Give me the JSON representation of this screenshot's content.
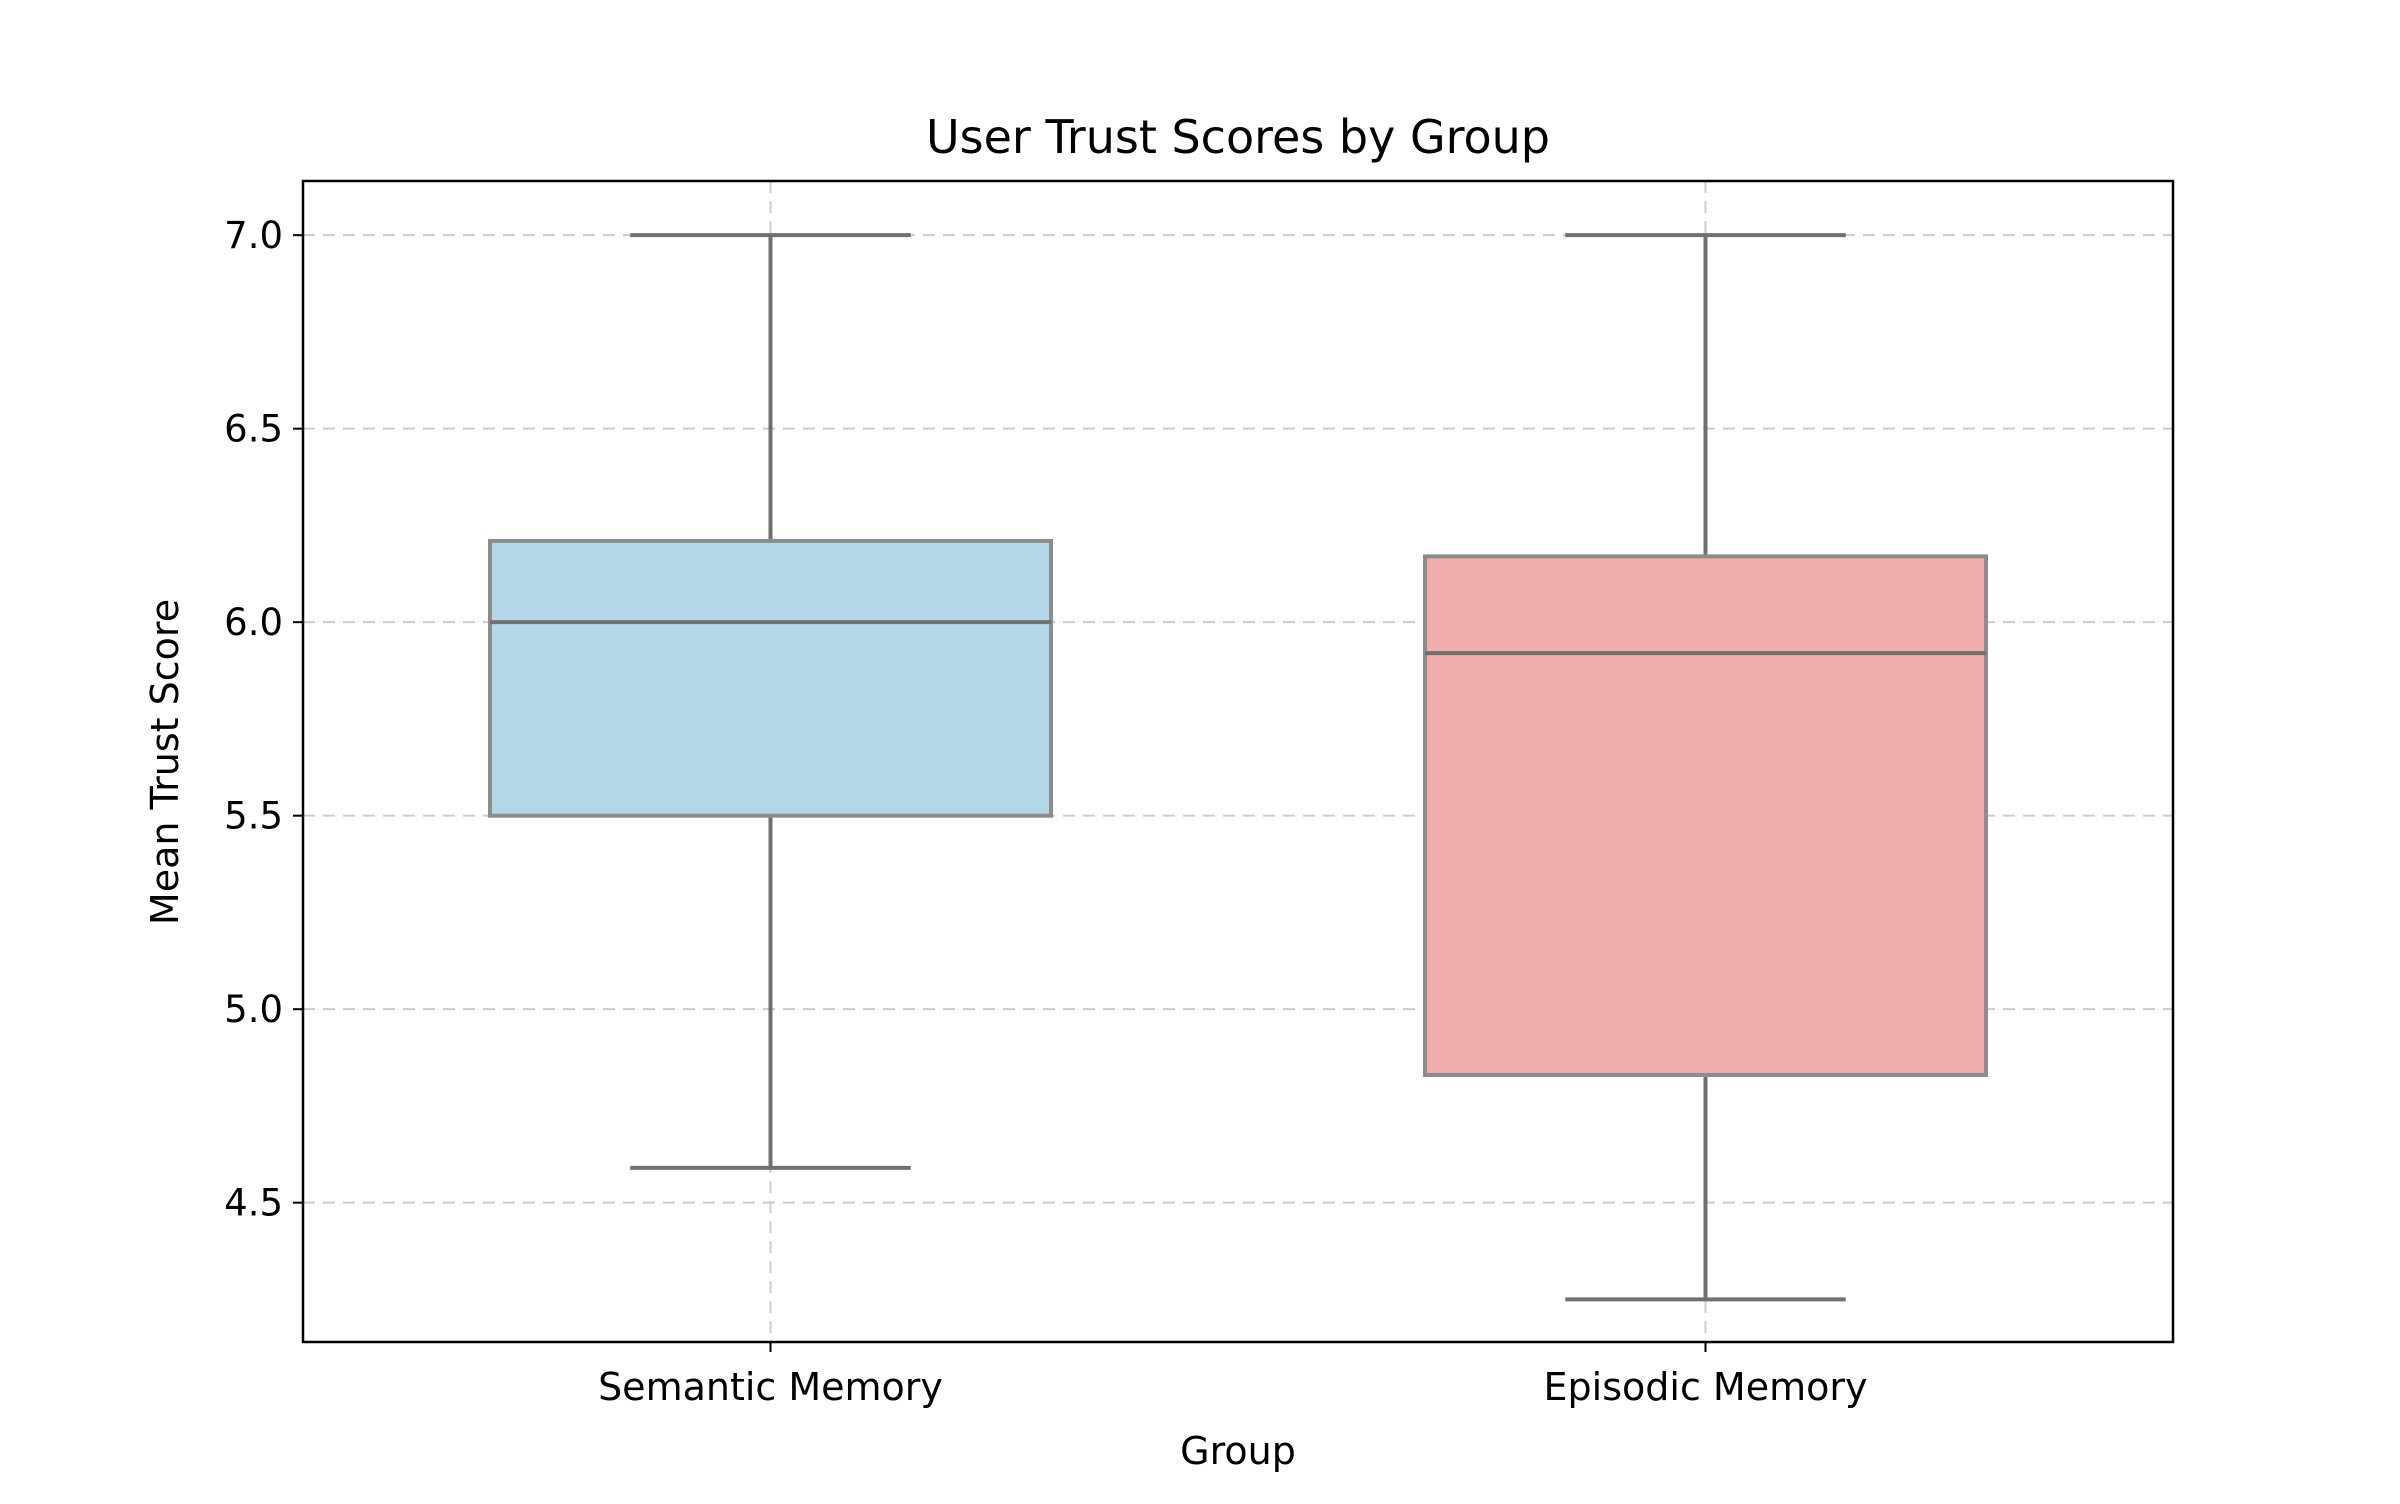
{
  "chart_data": {
    "type": "box",
    "title": "User Trust Scores by Group",
    "xlabel": "Group",
    "ylabel": "Mean Trust Score",
    "ylim": [
      4.14,
      7.14
    ],
    "yticks": [
      4.5,
      5.0,
      5.5,
      6.0,
      6.5,
      7.0
    ],
    "ytick_labels": [
      "4.5",
      "5.0",
      "5.5",
      "6.0",
      "6.5",
      "7.0"
    ],
    "categories": [
      "Semantic Memory",
      "Episodic Memory"
    ],
    "boxes": [
      {
        "category": "Semantic Memory",
        "whisker_low": 4.59,
        "q1": 5.5,
        "median": 6.0,
        "q3": 6.21,
        "whisker_high": 7.0,
        "color": "#b3d9e9"
      },
      {
        "category": "Episodic Memory",
        "whisker_low": 4.25,
        "q1": 4.83,
        "median": 5.92,
        "q3": 6.17,
        "whisker_high": 7.0,
        "color": "#f0aeaa"
      }
    ],
    "grid": true,
    "legend": "none"
  }
}
